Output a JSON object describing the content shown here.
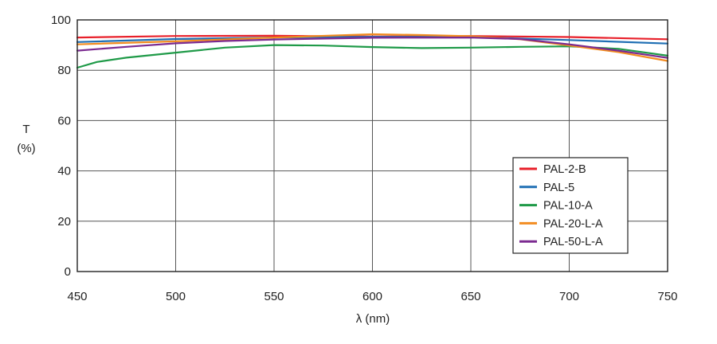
{
  "chart_data": {
    "type": "line",
    "title": "",
    "xlabel": "λ (nm)",
    "ylabel": "T",
    "ylabel_unit": "(%)",
    "xlim": [
      450,
      750
    ],
    "ylim": [
      0,
      100
    ],
    "x_ticks": [
      450,
      500,
      550,
      600,
      650,
      700,
      750
    ],
    "y_ticks": [
      0,
      20,
      40,
      60,
      80,
      100
    ],
    "grid": true,
    "legend_position": "bottom-right",
    "series": [
      {
        "name": "PAL-2-B",
        "color": "#e8202a",
        "x": [
          450,
          500,
          550,
          600,
          650,
          700,
          750
        ],
        "y": [
          93.0,
          93.6,
          93.7,
          93.4,
          93.6,
          93.2,
          92.3
        ]
      },
      {
        "name": "PAL-5",
        "color": "#1f6fb4",
        "x": [
          450,
          500,
          550,
          600,
          650,
          700,
          750
        ],
        "y": [
          91.2,
          92.4,
          93.0,
          93.3,
          93.2,
          92.0,
          90.6
        ]
      },
      {
        "name": "PAL-10-A",
        "color": "#1f9a48",
        "x": [
          450,
          460,
          475,
          500,
          525,
          550,
          575,
          600,
          625,
          650,
          675,
          700,
          725,
          750
        ],
        "y": [
          81.0,
          83.3,
          85.0,
          87.0,
          89.0,
          90.0,
          89.8,
          89.2,
          88.8,
          89.0,
          89.3,
          89.5,
          88.5,
          85.8
        ]
      },
      {
        "name": "PAL-20-L-A",
        "color": "#f28c20",
        "x": [
          450,
          500,
          550,
          600,
          625,
          650,
          675,
          700,
          725,
          750
        ],
        "y": [
          90.3,
          91.5,
          93.0,
          94.3,
          94.0,
          93.5,
          92.3,
          89.8,
          87.2,
          83.7
        ]
      },
      {
        "name": "PAL-50-L-A",
        "color": "#7b2a90",
        "x": [
          450,
          475,
          500,
          525,
          550,
          600,
          650,
          675,
          700,
          725,
          750
        ],
        "y": [
          87.8,
          89.3,
          90.7,
          91.6,
          92.2,
          92.9,
          93.0,
          92.4,
          90.3,
          87.8,
          84.9
        ]
      }
    ]
  }
}
